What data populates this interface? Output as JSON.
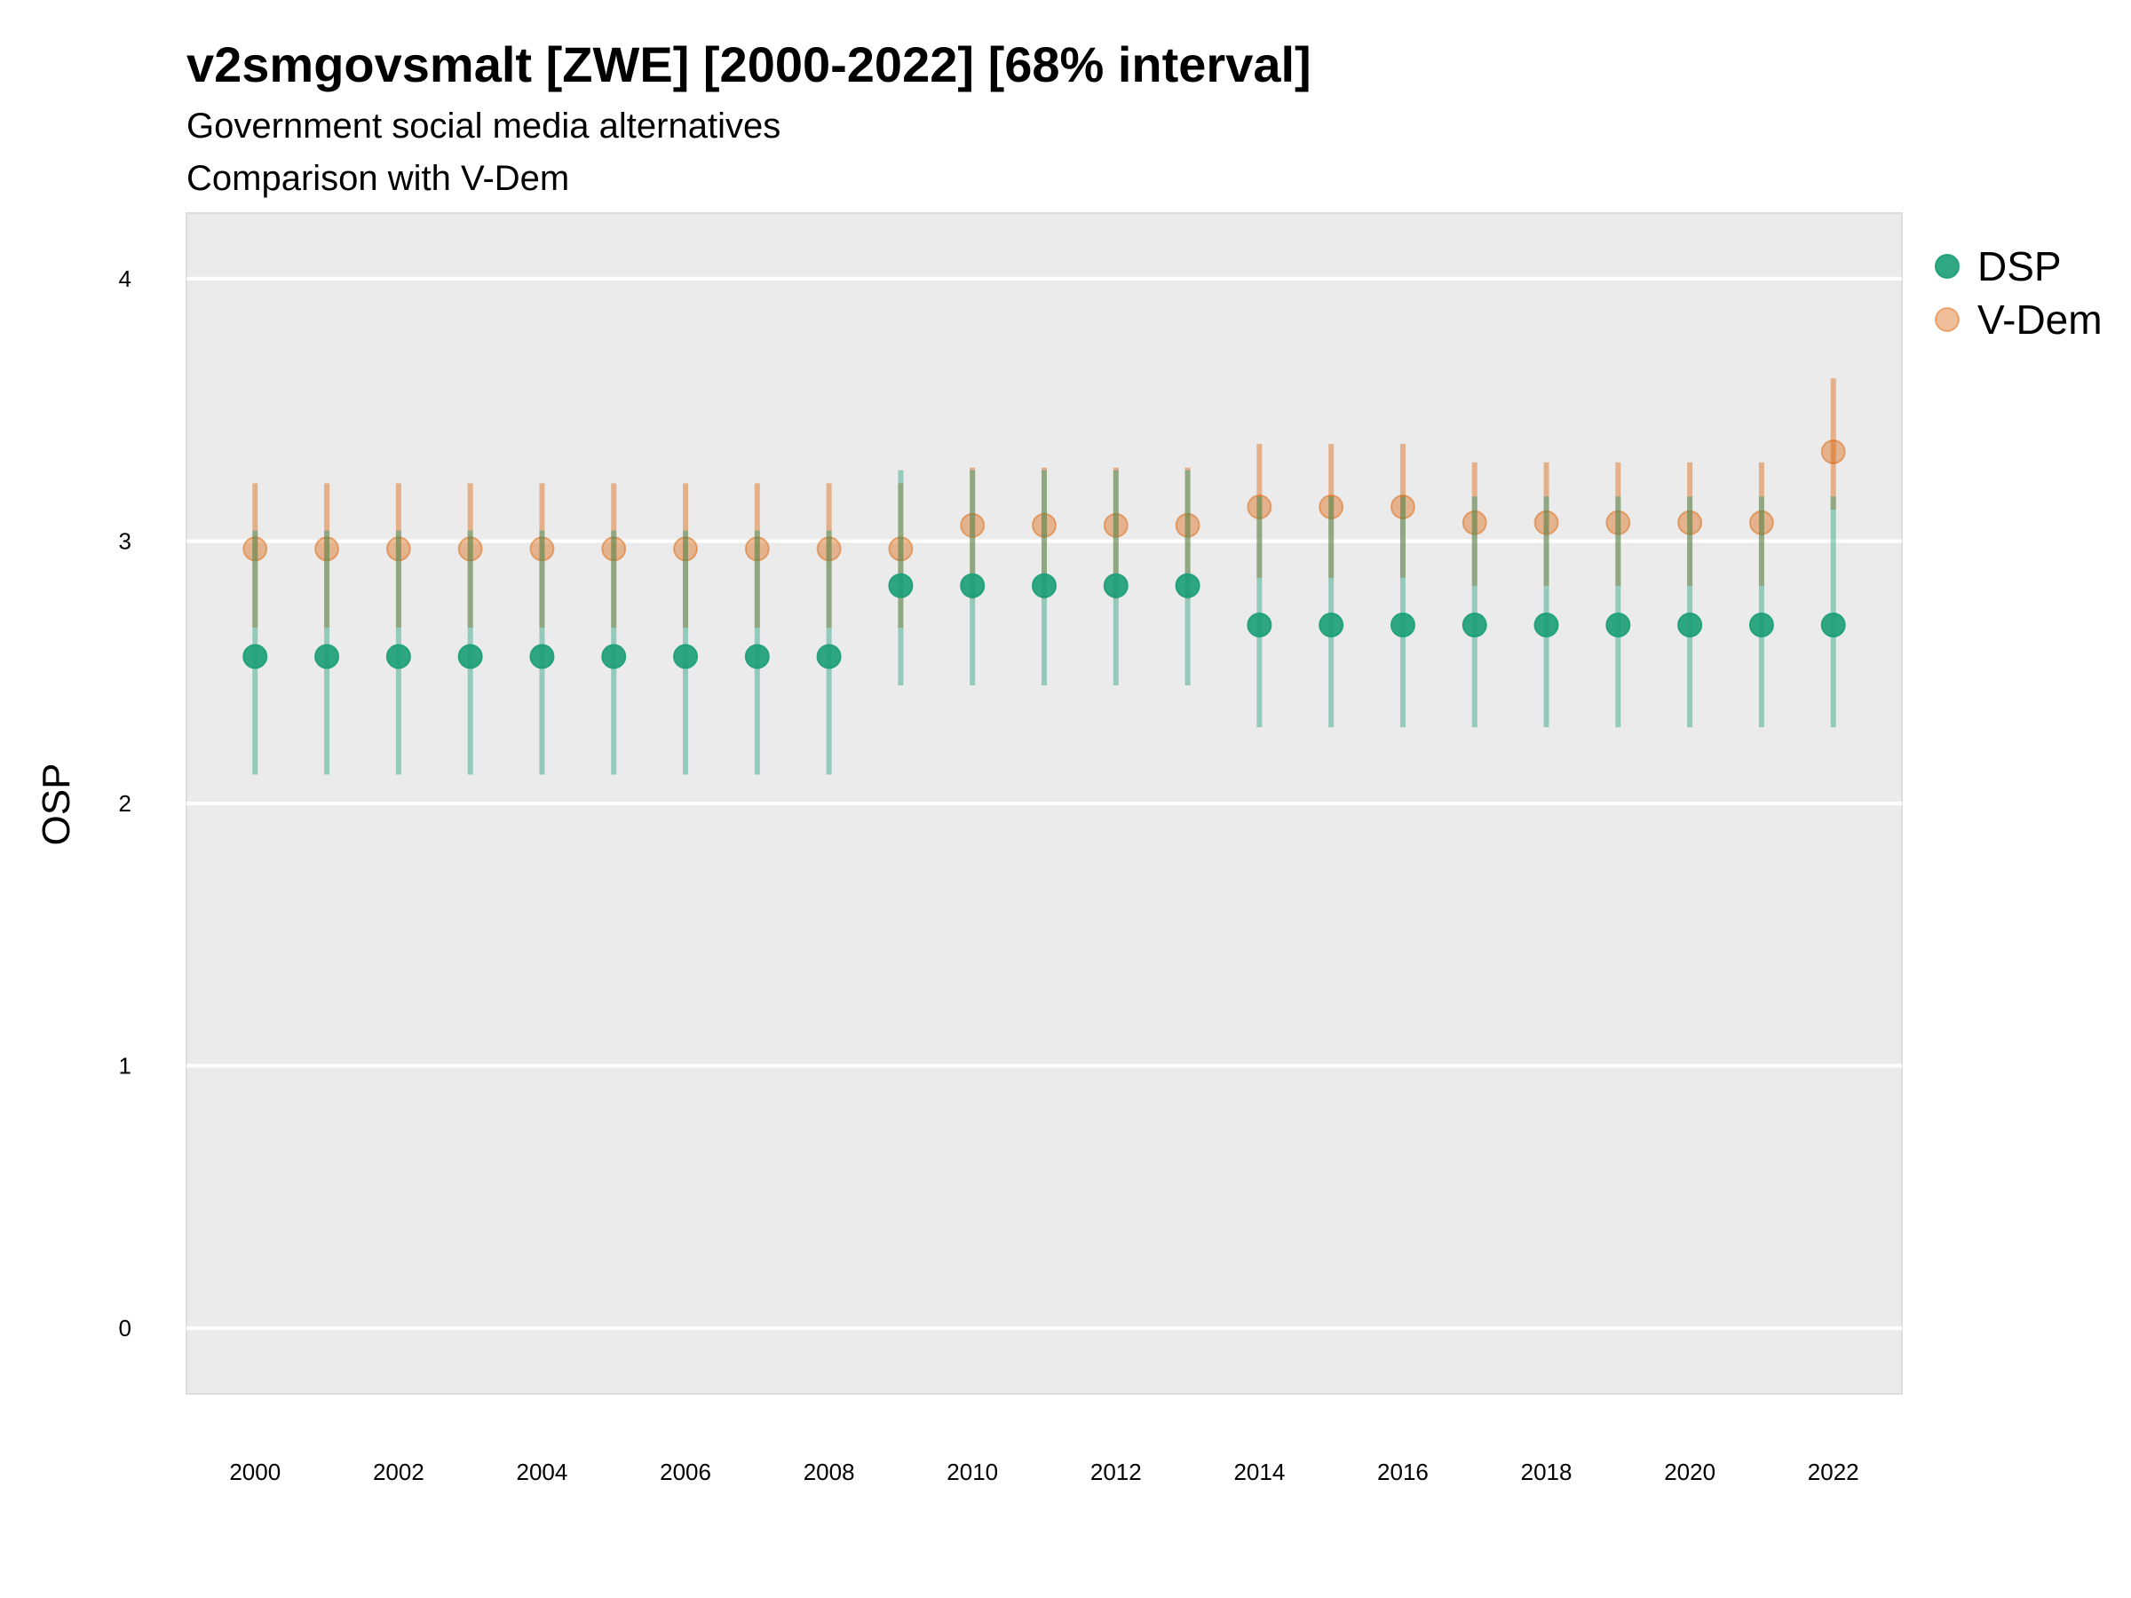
{
  "chart_data": {
    "type": "scatter",
    "title": "v2smgovsmalt [ZWE] [2000-2022] [68% interval]",
    "subtitle_lines": [
      "Government social media alternatives",
      "Comparison with V-Dem"
    ],
    "ylabel": "OSP",
    "xlabel": "",
    "ylim": [
      -0.25,
      4.25
    ],
    "yticks": [
      "0",
      "1",
      "2",
      "3",
      "4"
    ],
    "x": [
      2000,
      2001,
      2002,
      2003,
      2004,
      2005,
      2006,
      2007,
      2008,
      2009,
      2010,
      2011,
      2012,
      2013,
      2014,
      2015,
      2016,
      2017,
      2018,
      2019,
      2020,
      2021,
      2022
    ],
    "xtick_labels": [
      "2000",
      "2002",
      "2004",
      "2006",
      "2008",
      "2010",
      "2012",
      "2014",
      "2016",
      "2018",
      "2020",
      "2022"
    ],
    "grid": true,
    "legend_position": "right",
    "series": [
      {
        "name": "DSP",
        "color": "#1b9e77",
        "values": [
          2.56,
          2.56,
          2.56,
          2.56,
          2.56,
          2.56,
          2.56,
          2.56,
          2.56,
          2.83,
          2.83,
          2.83,
          2.83,
          2.83,
          2.68,
          2.68,
          2.68,
          2.68,
          2.68,
          2.68,
          2.68,
          2.68,
          2.68
        ],
        "lower": [
          2.11,
          2.11,
          2.11,
          2.11,
          2.11,
          2.11,
          2.11,
          2.11,
          2.11,
          2.45,
          2.45,
          2.45,
          2.45,
          2.45,
          2.29,
          2.29,
          2.29,
          2.29,
          2.29,
          2.29,
          2.29,
          2.29,
          2.29
        ],
        "upper": [
          3.04,
          3.04,
          3.04,
          3.04,
          3.04,
          3.04,
          3.04,
          3.04,
          3.04,
          3.27,
          3.27,
          3.27,
          3.27,
          3.27,
          3.17,
          3.17,
          3.17,
          3.17,
          3.17,
          3.17,
          3.17,
          3.17,
          3.17
        ]
      },
      {
        "name": "V-Dem",
        "color": "#d95f02",
        "values": [
          2.97,
          2.97,
          2.97,
          2.97,
          2.97,
          2.97,
          2.97,
          2.97,
          2.97,
          2.97,
          3.06,
          3.06,
          3.06,
          3.06,
          3.13,
          3.13,
          3.13,
          3.07,
          3.07,
          3.07,
          3.07,
          3.07,
          3.34
        ],
        "lower": [
          2.67,
          2.67,
          2.67,
          2.67,
          2.67,
          2.67,
          2.67,
          2.67,
          2.67,
          2.67,
          2.78,
          2.78,
          2.78,
          2.78,
          2.86,
          2.86,
          2.86,
          2.83,
          2.83,
          2.83,
          2.83,
          2.83,
          3.12
        ],
        "upper": [
          3.22,
          3.22,
          3.22,
          3.22,
          3.22,
          3.22,
          3.22,
          3.22,
          3.22,
          3.22,
          3.28,
          3.28,
          3.28,
          3.28,
          3.37,
          3.37,
          3.37,
          3.3,
          3.3,
          3.3,
          3.3,
          3.3,
          3.62
        ]
      }
    ]
  }
}
